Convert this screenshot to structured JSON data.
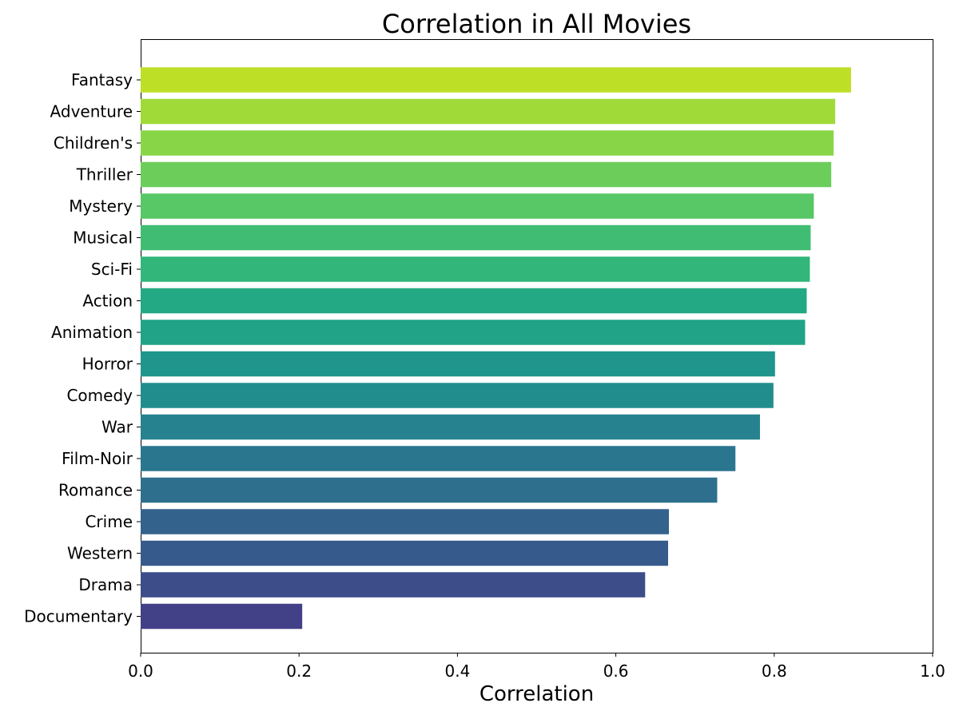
{
  "chart_data": {
    "type": "bar",
    "orientation": "horizontal",
    "title": "Correlation in All Movies",
    "xlabel": "Correlation",
    "ylabel": "",
    "xlim": [
      0.0,
      1.0
    ],
    "x_ticks": [
      "0.0",
      "0.2",
      "0.4",
      "0.6",
      "0.8",
      "1.0"
    ],
    "grid": false,
    "legend": "none",
    "colormap": "viridis",
    "categories": [
      "Fantasy",
      "Adventure",
      "Children's",
      "Thriller",
      "Mystery",
      "Musical",
      "Sci-Fi",
      "Action",
      "Animation",
      "Horror",
      "Comedy",
      "War",
      "Film-Noir",
      "Romance",
      "Crime",
      "Western",
      "Drama",
      "Documentary"
    ],
    "values": [
      0.897,
      0.877,
      0.875,
      0.872,
      0.85,
      0.846,
      0.845,
      0.841,
      0.839,
      0.801,
      0.799,
      0.782,
      0.751,
      0.728,
      0.667,
      0.666,
      0.637,
      0.204
    ],
    "colors": [
      "#bddf26",
      "#a0da39",
      "#89d548",
      "#6ccd5a",
      "#58c765",
      "#40bd72",
      "#32b67a",
      "#23a983",
      "#20a386",
      "#1f958b",
      "#228d8d",
      "#26828e",
      "#2a768e",
      "#2e6f8e",
      "#33628d",
      "#375a8c",
      "#3d4d8a",
      "#424086"
    ]
  }
}
